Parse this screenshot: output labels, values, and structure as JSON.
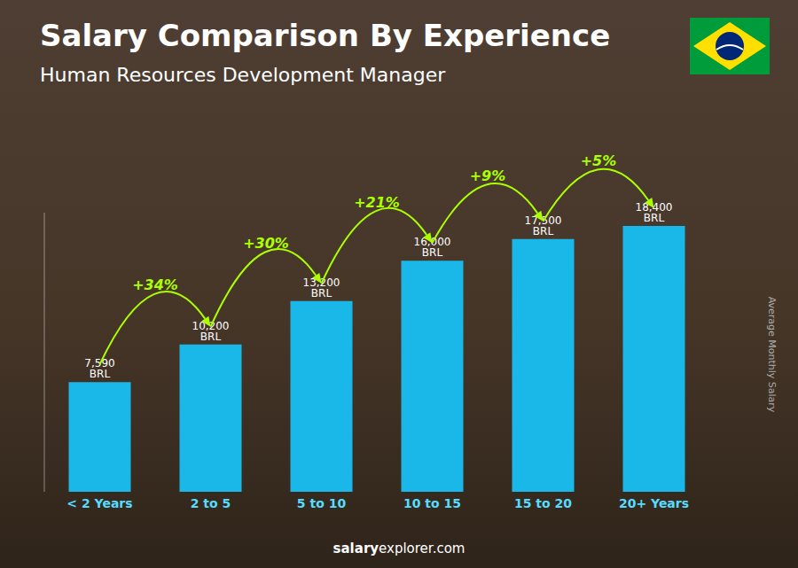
{
  "chart_data": {
    "type": "bar",
    "title": "Salary Comparison By Experience",
    "subtitle": "Human Resources Development Manager",
    "categories": [
      "< 2 Years",
      "2 to 5",
      "5 to 10",
      "10 to 15",
      "15 to 20",
      "20+ Years"
    ],
    "values": [
      7590,
      10200,
      13200,
      16000,
      17500,
      18400
    ],
    "value_labels": [
      "7,590 BRL",
      "10,200 BRL",
      "13,200 BRL",
      "16,000 BRL",
      "17,500 BRL",
      "18,400 BRL"
    ],
    "data_labels": true,
    "color": "#1ab8e8",
    "ylim": [
      0,
      19320
    ],
    "tick_labels": "x",
    "grid": false,
    "ylabel": "Average Monthly Salary",
    "annotations": [
      {
        "text": "+34%",
        "color": "#aaff00"
      },
      {
        "text": "+30%",
        "color": "#aaff00"
      },
      {
        "text": "+21%",
        "color": "#aaff00"
      },
      {
        "text": "+9%",
        "color": "#aaff00"
      },
      {
        "text": "+5%",
        "color": "#aaff00"
      }
    ],
    "watermark": [
      "salary",
      "explorer.com"
    ]
  }
}
